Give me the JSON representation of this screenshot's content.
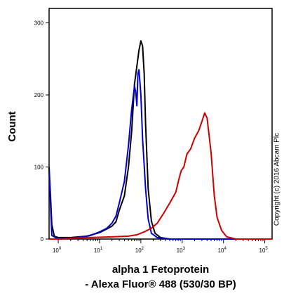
{
  "chart_data": {
    "type": "line",
    "xscale": "log",
    "xlim": [
      0.6,
      150000
    ],
    "ylim": [
      0,
      320
    ],
    "ylabel": "Count",
    "xlabel_line1": "alpha 1 Fetoprotein",
    "xlabel_line2": "- Alexa Fluor® 488 (530/30 BP)",
    "y_ticks": [
      0,
      100,
      200,
      300
    ],
    "x_ticks": [
      {
        "value": 1,
        "base": "10",
        "exp": "0"
      },
      {
        "value": 10,
        "base": "10",
        "exp": "1"
      },
      {
        "value": 100,
        "base": "10",
        "exp": "2"
      },
      {
        "value": 1000,
        "base": "10",
        "exp": "3"
      },
      {
        "value": 10000,
        "base": "10",
        "exp": "4"
      },
      {
        "value": 100000,
        "base": "10",
        "exp": "5"
      }
    ],
    "copyright": "Copyright (c) 2016 Abcam Plc",
    "series": [
      {
        "color": "#000000",
        "points": [
          [
            0.6,
            100
          ],
          [
            0.65,
            60
          ],
          [
            0.7,
            20
          ],
          [
            0.8,
            4
          ],
          [
            1,
            2
          ],
          [
            2,
            2
          ],
          [
            5,
            4
          ],
          [
            10,
            9
          ],
          [
            15,
            14
          ],
          [
            20,
            18
          ],
          [
            25,
            24
          ],
          [
            30,
            40
          ],
          [
            40,
            60
          ],
          [
            50,
            100
          ],
          [
            60,
            150
          ],
          [
            70,
            215
          ],
          [
            80,
            240
          ],
          [
            90,
            262
          ],
          [
            100,
            275
          ],
          [
            110,
            268
          ],
          [
            120,
            230
          ],
          [
            130,
            160
          ],
          [
            150,
            70
          ],
          [
            180,
            25
          ],
          [
            220,
            8
          ],
          [
            300,
            2
          ],
          [
            500,
            0
          ],
          [
            10000,
            0
          ],
          [
            150000,
            0
          ]
        ]
      },
      {
        "color": "#0000cc",
        "points": [
          [
            0.6,
            95
          ],
          [
            0.7,
            5
          ],
          [
            1,
            0
          ],
          [
            3,
            2
          ],
          [
            6,
            5
          ],
          [
            10,
            10
          ],
          [
            15,
            15
          ],
          [
            20,
            22
          ],
          [
            25,
            32
          ],
          [
            30,
            50
          ],
          [
            40,
            80
          ],
          [
            50,
            130
          ],
          [
            60,
            180
          ],
          [
            70,
            212
          ],
          [
            75,
            205
          ],
          [
            80,
            185
          ],
          [
            85,
            230
          ],
          [
            90,
            235
          ],
          [
            100,
            200
          ],
          [
            110,
            140
          ],
          [
            130,
            70
          ],
          [
            150,
            28
          ],
          [
            180,
            8
          ],
          [
            250,
            2
          ],
          [
            500,
            0
          ],
          [
            150000,
            0
          ]
        ]
      },
      {
        "color": "#cc0000",
        "points": [
          [
            0.6,
            0
          ],
          [
            1,
            0
          ],
          [
            5,
            2
          ],
          [
            20,
            3
          ],
          [
            50,
            4
          ],
          [
            80,
            6
          ],
          [
            120,
            10
          ],
          [
            180,
            15
          ],
          [
            250,
            22
          ],
          [
            350,
            35
          ],
          [
            500,
            50
          ],
          [
            700,
            65
          ],
          [
            850,
            85
          ],
          [
            950,
            95
          ],
          [
            1100,
            100
          ],
          [
            1300,
            118
          ],
          [
            1600,
            125
          ],
          [
            2000,
            140
          ],
          [
            2500,
            150
          ],
          [
            3000,
            163
          ],
          [
            3500,
            175
          ],
          [
            4000,
            168
          ],
          [
            5000,
            120
          ],
          [
            6000,
            60
          ],
          [
            7000,
            30
          ],
          [
            9000,
            12
          ],
          [
            12000,
            3
          ],
          [
            20000,
            0
          ],
          [
            150000,
            0
          ]
        ]
      }
    ]
  }
}
